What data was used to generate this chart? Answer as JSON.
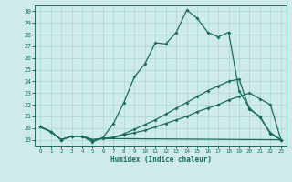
{
  "xlabel": "Humidex (Indice chaleur)",
  "bg_color": "#ceeaea",
  "line_color": "#1a6b5a",
  "grid_color": "#a8d8d8",
  "xlim": [
    -0.5,
    23.5
  ],
  "ylim": [
    18.5,
    30.5
  ],
  "xticks": [
    0,
    1,
    2,
    3,
    4,
    5,
    6,
    7,
    8,
    9,
    10,
    11,
    12,
    13,
    14,
    15,
    16,
    17,
    18,
    19,
    20,
    21,
    22,
    23
  ],
  "yticks": [
    19,
    20,
    21,
    22,
    23,
    24,
    25,
    26,
    27,
    28,
    29,
    30
  ],
  "line1_x": [
    0,
    1,
    2,
    3,
    4,
    5,
    6,
    7,
    8,
    9,
    10,
    11,
    12,
    13,
    14,
    15,
    16,
    17,
    18,
    19,
    20,
    21,
    22,
    23
  ],
  "line1_y": [
    20.1,
    19.7,
    19.0,
    19.3,
    19.3,
    18.8,
    19.2,
    20.4,
    22.2,
    24.4,
    25.5,
    27.3,
    27.2,
    28.2,
    30.1,
    29.4,
    28.2,
    27.8,
    28.2,
    23.2,
    21.7,
    20.9,
    19.6,
    19.0
  ],
  "line2_x": [
    0,
    1,
    2,
    3,
    4,
    5,
    6,
    7,
    8,
    9,
    10,
    11,
    12,
    13,
    14,
    15,
    16,
    17,
    18,
    19,
    20,
    21,
    22,
    23
  ],
  "line2_y": [
    20.1,
    19.7,
    19.0,
    19.3,
    19.3,
    19.0,
    19.1,
    19.2,
    19.5,
    19.9,
    20.3,
    20.7,
    21.2,
    21.7,
    22.2,
    22.7,
    23.2,
    23.6,
    24.0,
    24.2,
    21.6,
    21.0,
    19.5,
    19.0
  ],
  "line3_x": [
    0,
    1,
    2,
    3,
    4,
    5,
    6,
    7,
    8,
    9,
    10,
    11,
    12,
    13,
    14,
    15,
    16,
    17,
    18,
    19,
    20,
    21,
    22,
    23
  ],
  "line3_y": [
    20.1,
    19.7,
    19.0,
    19.3,
    19.3,
    19.0,
    19.1,
    19.2,
    19.4,
    19.6,
    19.8,
    20.1,
    20.4,
    20.7,
    21.0,
    21.4,
    21.7,
    22.0,
    22.4,
    22.7,
    23.0,
    22.5,
    22.0,
    19.0
  ],
  "line4_x": [
    0,
    1,
    2,
    3,
    4,
    5,
    6,
    23
  ],
  "line4_y": [
    20.1,
    19.7,
    19.0,
    19.3,
    19.3,
    19.0,
    19.1,
    19.0
  ]
}
